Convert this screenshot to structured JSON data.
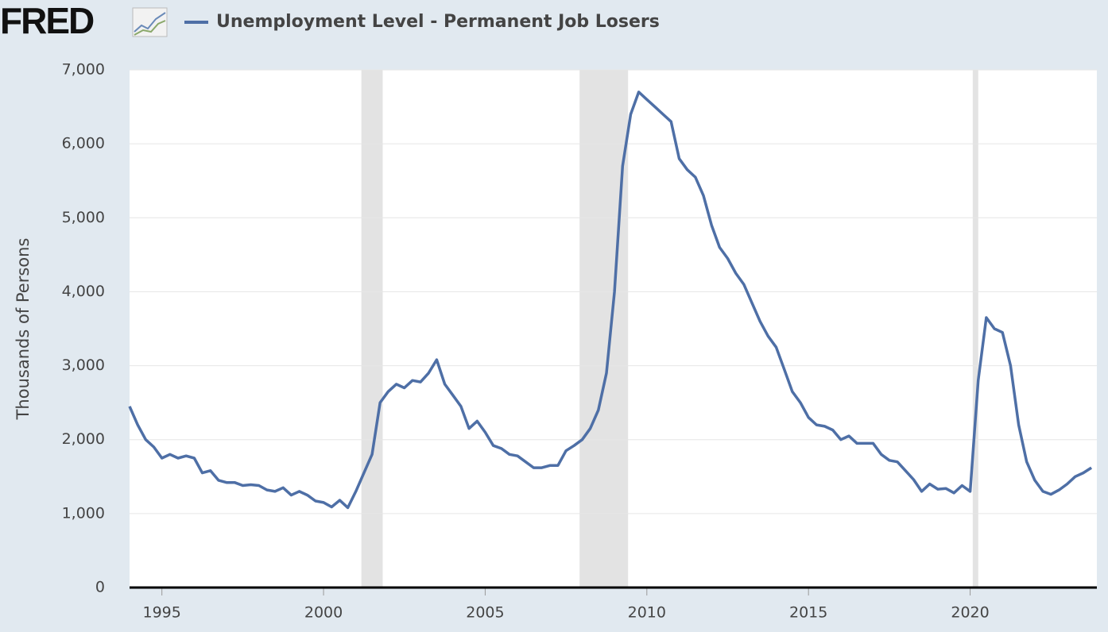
{
  "logo": "FRED",
  "chart_data": {
    "type": "line",
    "title": "Unemployment Level - Permanent Job Losers",
    "ylabel": "Thousands of Persons",
    "xlim": [
      1994.0,
      2023.92
    ],
    "xticks": [
      1995,
      2000,
      2005,
      2010,
      2015,
      2020
    ],
    "ylim": [
      0,
      7000
    ],
    "yticks": [
      0,
      {
        "value": 1000,
        "label": "1,000"
      },
      {
        "value": 2000,
        "label": "2,000"
      },
      {
        "value": 3000,
        "label": "3,000"
      },
      {
        "value": 4000,
        "label": "4,000"
      },
      {
        "value": 5000,
        "label": "5,000"
      },
      {
        "value": 6000,
        "label": "6,000"
      },
      {
        "value": 7000,
        "label": "7,000"
      }
    ],
    "grid": true,
    "recessions": [
      [
        2001.17,
        2001.83
      ],
      [
        2007.92,
        2009.42
      ],
      [
        2020.08,
        2020.25
      ]
    ],
    "recession_color": "#e3e3e3",
    "x": [
      1994.0,
      1994.25,
      1994.5,
      1994.75,
      1995.0,
      1995.25,
      1995.5,
      1995.75,
      1996.0,
      1996.25,
      1996.5,
      1996.75,
      1997.0,
      1997.25,
      1997.5,
      1997.75,
      1998.0,
      1998.25,
      1998.5,
      1998.75,
      1999.0,
      1999.25,
      1999.5,
      1999.75,
      2000.0,
      2000.25,
      2000.5,
      2000.75,
      2001.0,
      2001.25,
      2001.5,
      2001.75,
      2002.0,
      2002.25,
      2002.5,
      2002.75,
      2003.0,
      2003.25,
      2003.5,
      2003.75,
      2004.0,
      2004.25,
      2004.5,
      2004.75,
      2005.0,
      2005.25,
      2005.5,
      2005.75,
      2006.0,
      2006.25,
      2006.5,
      2006.75,
      2007.0,
      2007.25,
      2007.5,
      2007.75,
      2008.0,
      2008.25,
      2008.5,
      2008.75,
      2009.0,
      2009.25,
      2009.5,
      2009.75,
      2010.0,
      2010.25,
      2010.5,
      2010.75,
      2011.0,
      2011.25,
      2011.5,
      2011.75,
      2012.0,
      2012.25,
      2012.5,
      2012.75,
      2013.0,
      2013.25,
      2013.5,
      2013.75,
      2014.0,
      2014.25,
      2014.5,
      2014.75,
      2015.0,
      2015.25,
      2015.5,
      2015.75,
      2016.0,
      2016.25,
      2016.5,
      2016.75,
      2017.0,
      2017.25,
      2017.5,
      2017.75,
      2018.0,
      2018.25,
      2018.5,
      2018.75,
      2019.0,
      2019.25,
      2019.5,
      2019.75,
      2020.0,
      2020.25,
      2020.5,
      2020.75,
      2021.0,
      2021.25,
      2021.5,
      2021.75,
      2022.0,
      2022.25,
      2022.5,
      2022.75,
      2023.0,
      2023.25,
      2023.5,
      2023.75
    ],
    "series": [
      {
        "name": "Unemployment Level - Permanent Job Losers",
        "color": "#4e6fa6",
        "values": [
          2450,
          2200,
          2000,
          1900,
          1750,
          1800,
          1750,
          1780,
          1750,
          1550,
          1580,
          1450,
          1420,
          1420,
          1380,
          1390,
          1380,
          1320,
          1300,
          1350,
          1250,
          1300,
          1250,
          1170,
          1150,
          1090,
          1180,
          1080,
          1300,
          1550,
          1800,
          2500,
          2650,
          2750,
          2700,
          2800,
          2780,
          2900,
          3080,
          2750,
          2600,
          2450,
          2150,
          2250,
          2100,
          1920,
          1880,
          1800,
          1780,
          1700,
          1620,
          1620,
          1650,
          1650,
          1850,
          1920,
          2000,
          2150,
          2400,
          2900,
          4000,
          5700,
          6400,
          6700,
          6600,
          6500,
          6400,
          6300,
          5800,
          5650,
          5550,
          5300,
          4900,
          4600,
          4450,
          4250,
          4100,
          3850,
          3600,
          3400,
          3250,
          2950,
          2650,
          2500,
          2300,
          2200,
          2180,
          2130,
          2000,
          2050,
          1950,
          1950,
          1950,
          1800,
          1720,
          1700,
          1580,
          1460,
          1300,
          1400,
          1330,
          1340,
          1280,
          1380,
          1300,
          2800,
          3650,
          3500,
          3450,
          3000,
          2200,
          1700,
          1450,
          1300,
          1260,
          1320,
          1400,
          1500,
          1550,
          1620
        ]
      }
    ]
  }
}
